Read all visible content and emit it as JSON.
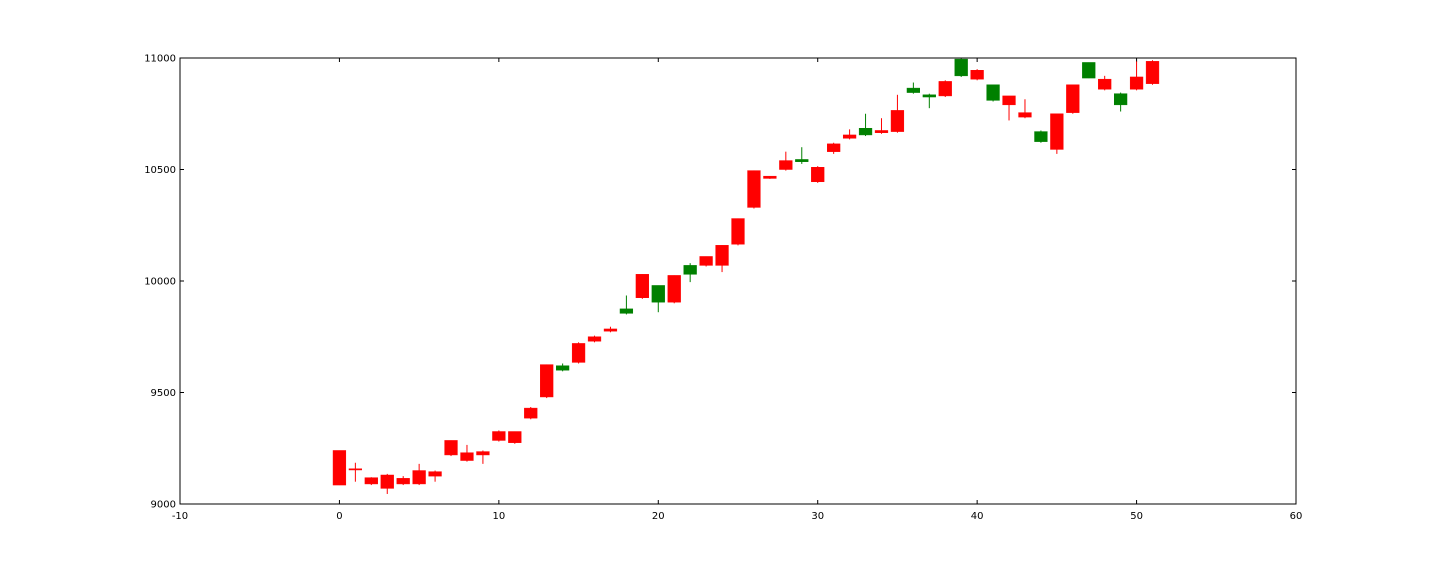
{
  "chart_data": {
    "type": "candlestick",
    "title": "",
    "xlabel": "",
    "ylabel": "",
    "xlim": [
      -10,
      60
    ],
    "ylim": [
      9000,
      11000
    ],
    "xticks": [
      -10,
      0,
      10,
      20,
      30,
      40,
      50,
      60
    ],
    "yticks": [
      9000,
      9500,
      10000,
      10500,
      11000
    ],
    "grid": false,
    "colors": {
      "up": "#ff0000",
      "down": "#008000"
    },
    "candles": [
      {
        "x": 0,
        "open": 9085,
        "high": 9240,
        "low": 9085,
        "close": 9240
      },
      {
        "x": 1,
        "open": 9155,
        "high": 9185,
        "low": 9100,
        "close": 9158
      },
      {
        "x": 2,
        "open": 9090,
        "high": 9120,
        "low": 9085,
        "close": 9118
      },
      {
        "x": 3,
        "open": 9070,
        "high": 9135,
        "low": 9045,
        "close": 9130
      },
      {
        "x": 4,
        "open": 9090,
        "high": 9125,
        "low": 9085,
        "close": 9115
      },
      {
        "x": 5,
        "open": 9090,
        "high": 9180,
        "low": 9085,
        "close": 9150
      },
      {
        "x": 6,
        "open": 9125,
        "high": 9150,
        "low": 9100,
        "close": 9145
      },
      {
        "x": 7,
        "open": 9220,
        "high": 9285,
        "low": 9215,
        "close": 9285
      },
      {
        "x": 8,
        "open": 9195,
        "high": 9265,
        "low": 9190,
        "close": 9230
      },
      {
        "x": 9,
        "open": 9220,
        "high": 9240,
        "low": 9180,
        "close": 9235
      },
      {
        "x": 10,
        "open": 9285,
        "high": 9330,
        "low": 9280,
        "close": 9325
      },
      {
        "x": 11,
        "open": 9275,
        "high": 9325,
        "low": 9270,
        "close": 9325
      },
      {
        "x": 12,
        "open": 9385,
        "high": 9435,
        "low": 9380,
        "close": 9430
      },
      {
        "x": 13,
        "open": 9480,
        "high": 9625,
        "low": 9475,
        "close": 9625
      },
      {
        "x": 14,
        "open": 9620,
        "high": 9630,
        "low": 9595,
        "close": 9600
      },
      {
        "x": 15,
        "open": 9635,
        "high": 9725,
        "low": 9630,
        "close": 9720
      },
      {
        "x": 16,
        "open": 9730,
        "high": 9755,
        "low": 9725,
        "close": 9750
      },
      {
        "x": 17,
        "open": 9775,
        "high": 9795,
        "low": 9770,
        "close": 9785
      },
      {
        "x": 18,
        "open": 9875,
        "high": 9935,
        "low": 9850,
        "close": 9855
      },
      {
        "x": 19,
        "open": 9925,
        "high": 10030,
        "low": 9920,
        "close": 10030
      },
      {
        "x": 20,
        "open": 9980,
        "high": 9980,
        "low": 9860,
        "close": 9905
      },
      {
        "x": 21,
        "open": 9905,
        "high": 10025,
        "low": 9900,
        "close": 10025
      },
      {
        "x": 22,
        "open": 10070,
        "high": 10080,
        "low": 9995,
        "close": 10030
      },
      {
        "x": 23,
        "open": 10070,
        "high": 10110,
        "low": 10065,
        "close": 10110
      },
      {
        "x": 24,
        "open": 10070,
        "high": 10160,
        "low": 10040,
        "close": 10160
      },
      {
        "x": 25,
        "open": 10165,
        "high": 10280,
        "low": 10160,
        "close": 10280
      },
      {
        "x": 26,
        "open": 10330,
        "high": 10495,
        "low": 10325,
        "close": 10495
      },
      {
        "x": 27,
        "open": 10460,
        "high": 10470,
        "low": 10458,
        "close": 10470
      },
      {
        "x": 28,
        "open": 10500,
        "high": 10580,
        "low": 10495,
        "close": 10540
      },
      {
        "x": 29,
        "open": 10545,
        "high": 10600,
        "low": 10525,
        "close": 10535
      },
      {
        "x": 30,
        "open": 10445,
        "high": 10515,
        "low": 10440,
        "close": 10510
      },
      {
        "x": 31,
        "open": 10580,
        "high": 10620,
        "low": 10570,
        "close": 10615
      },
      {
        "x": 32,
        "open": 10640,
        "high": 10680,
        "low": 10635,
        "close": 10655
      },
      {
        "x": 33,
        "open": 10685,
        "high": 10750,
        "low": 10650,
        "close": 10655
      },
      {
        "x": 34,
        "open": 10665,
        "high": 10730,
        "low": 10660,
        "close": 10675
      },
      {
        "x": 35,
        "open": 10670,
        "high": 10835,
        "low": 10665,
        "close": 10765
      },
      {
        "x": 36,
        "open": 10865,
        "high": 10890,
        "low": 10840,
        "close": 10845
      },
      {
        "x": 37,
        "open": 10835,
        "high": 10840,
        "low": 10775,
        "close": 10825
      },
      {
        "x": 38,
        "open": 10830,
        "high": 10900,
        "low": 10825,
        "close": 10895
      },
      {
        "x": 39,
        "open": 10995,
        "high": 11000,
        "low": 10915,
        "close": 10920
      },
      {
        "x": 40,
        "open": 10905,
        "high": 10950,
        "low": 10900,
        "close": 10945
      },
      {
        "x": 41,
        "open": 10880,
        "high": 10880,
        "low": 10805,
        "close": 10810
      },
      {
        "x": 42,
        "open": 10790,
        "high": 10830,
        "low": 10720,
        "close": 10830
      },
      {
        "x": 43,
        "open": 10735,
        "high": 10815,
        "low": 10730,
        "close": 10755
      },
      {
        "x": 44,
        "open": 10670,
        "high": 10675,
        "low": 10620,
        "close": 10625
      },
      {
        "x": 45,
        "open": 10590,
        "high": 10750,
        "low": 10570,
        "close": 10750
      },
      {
        "x": 46,
        "open": 10755,
        "high": 10880,
        "low": 10750,
        "close": 10880
      },
      {
        "x": 47,
        "open": 10980,
        "high": 10980,
        "low": 10910,
        "close": 10910
      },
      {
        "x": 48,
        "open": 10860,
        "high": 10920,
        "low": 10855,
        "close": 10905
      },
      {
        "x": 49,
        "open": 10840,
        "high": 10845,
        "low": 10760,
        "close": 10790
      },
      {
        "x": 50,
        "open": 10860,
        "high": 10985,
        "low": 10855,
        "close": 10915
      },
      {
        "x": 51,
        "open": 10885,
        "high": 10990,
        "low": 10880,
        "close": 10985
      }
    ]
  }
}
